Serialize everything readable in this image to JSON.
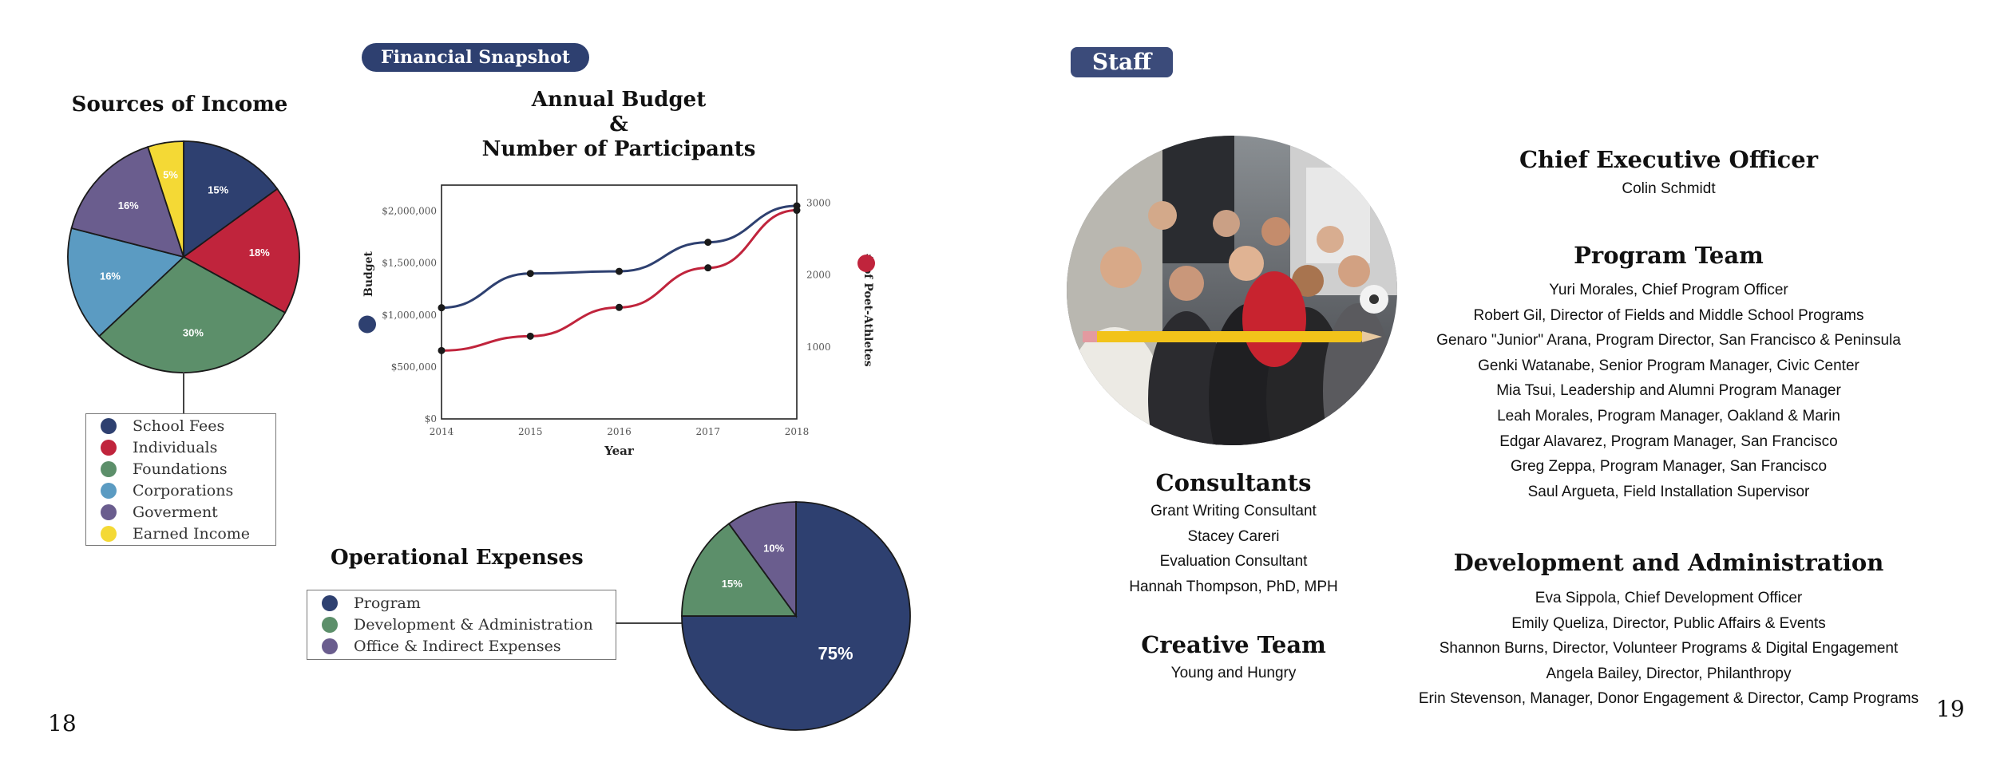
{
  "left_page": {
    "section_label": "Financial Snapshot",
    "page_number": "18"
  },
  "right_page": {
    "section_label": "Staff",
    "page_number": "19"
  },
  "income": {
    "title": "Sources of Income",
    "legend": [
      "School Fees",
      "Individuals",
      "Foundations",
      "Corporations",
      "Goverment",
      "Earned Income"
    ]
  },
  "budget": {
    "title_line1": "Annual Budget",
    "title_line2": "&",
    "title_line3": "Number of Participants",
    "left_axis_label": "Budget",
    "right_axis_label": "# of Poet-Athletes",
    "x_label": "Year"
  },
  "expenses": {
    "title": "Operational Expenses",
    "legend": [
      "Program",
      "Development & Administration",
      "Office & Indirect Expenses"
    ]
  },
  "chart_data": [
    {
      "type": "pie",
      "title": "Sources of Income",
      "labels": [
        "School Fees",
        "Individuals",
        "Foundations",
        "Corporations",
        "Goverment",
        "Earned Income"
      ],
      "values": [
        15,
        18,
        30,
        16,
        16,
        5
      ],
      "value_labels": [
        "15%",
        "18%",
        "30%",
        "16%",
        "16%",
        "5%"
      ],
      "colors": [
        "#2e4070",
        "#c0243c",
        "#5c8f6a",
        "#5b9bc2",
        "#6a5d8e",
        "#f4d935"
      ]
    },
    {
      "type": "line",
      "title": "Annual Budget & Number of Participants",
      "xlabel": "Year",
      "ylabel": "Budget",
      "ylabel_right": "# of Poet-Athletes",
      "x": [
        2014,
        2015,
        2016,
        2017,
        2018
      ],
      "ylim": [
        0,
        2250000
      ],
      "ylim_right": [
        0,
        3250
      ],
      "y_ticks": [
        "$0",
        "$500,000",
        "$1,000,000",
        "$1,500,000",
        "$2,000,000"
      ],
      "y_tick_values": [
        0,
        500000,
        1000000,
        1500000,
        2000000
      ],
      "y_right_ticks": [
        "1000",
        "2000",
        "3000"
      ],
      "y_right_tick_values": [
        1000,
        2000,
        3000
      ],
      "series": [
        {
          "name": "Budget",
          "axis": "left",
          "color": "#2e4070",
          "values": [
            1070000,
            1400000,
            1420000,
            1700000,
            2050000
          ]
        },
        {
          "name": "# of Poet-Athletes",
          "axis": "right",
          "color": "#c0243c",
          "values": [
            950,
            1150,
            1550,
            2100,
            2900
          ]
        }
      ]
    },
    {
      "type": "pie",
      "title": "Operational Expenses",
      "labels": [
        "Program",
        "Development & Administration",
        "Office & Indirect Expenses"
      ],
      "values": [
        75,
        15,
        10
      ],
      "value_labels": [
        "75%",
        "15%",
        "10%"
      ],
      "colors": [
        "#2e4070",
        "#5c8f6a",
        "#6a5d8e"
      ]
    }
  ],
  "staff": {
    "ceo_heading": "Chief Executive Officer",
    "ceo_name": "Colin Schmidt",
    "program_heading": "Program Team",
    "program_members": [
      "Yuri Morales, Chief Program Officer",
      "Robert Gil, Director of Fields and Middle School Programs",
      "Genaro \"Junior\" Arana, Program Director, San Francisco & Peninsula",
      "Genki Watanabe, Senior Program Manager, Civic Center",
      "Mia Tsui, Leadership and Alumni Program Manager",
      "Leah Morales, Program Manager, Oakland & Marin",
      "Edgar Alavarez, Program Manager, San Francisco",
      "Greg Zeppa, Program Manager, San Francisco",
      "Saul Argueta, Field Installation Supervisor"
    ],
    "dev_heading": "Development and Administration",
    "dev_members": [
      "Eva Sippola, Chief Development Officer",
      "Emily Queliza, Director, Public Affairs & Events",
      "Shannon Burns, Director, Volunteer Programs & Digital Engagement",
      "Angela Bailey, Director, Philanthropy",
      "Erin Stevenson, Manager, Donor Engagement & Director, Camp Programs"
    ],
    "consultants_heading": "Consultants",
    "consultants": [
      "Grant Writing Consultant",
      "Stacey Careri",
      "Evaluation Consultant",
      "Hannah Thompson, PhD, MPH"
    ],
    "creative_heading": "Creative Team",
    "creative_name": "Young and Hungry"
  }
}
